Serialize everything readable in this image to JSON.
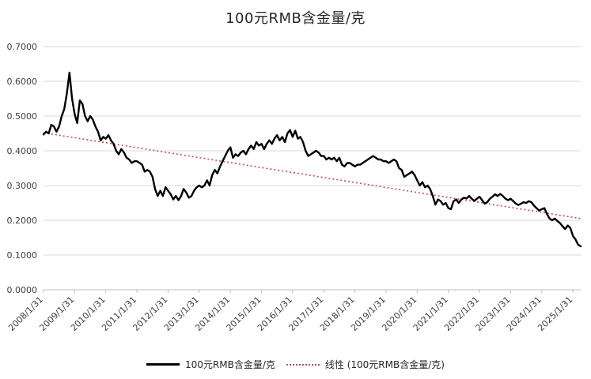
{
  "title": "100元RMB含金量/克",
  "colors": {
    "series": "#000000",
    "trend": "#c0504d",
    "grid": "#d9d9d9",
    "axis": "#bfbfbf",
    "text": "#404040",
    "title_text": "#262626",
    "background": "#ffffff"
  },
  "legend": [
    {
      "label": "100元RMB含金量/克",
      "style": "solid-black"
    },
    {
      "label": "线性 (100元RMB含金量/克)",
      "style": "dotted-red"
    }
  ],
  "chart_data": {
    "type": "line",
    "title": "100元RMB含金量/克",
    "ylim": [
      0,
      0.7
    ],
    "y_tick_step": 0.1,
    "y_tick_labels": [
      "0.0000",
      "0.1000",
      "0.2000",
      "0.3000",
      "0.4000",
      "0.5000",
      "0.6000",
      "0.7000"
    ],
    "x_tick_labels": [
      "2008/1/31",
      "2009/1/31",
      "2010/1/31",
      "2011/1/31",
      "2012/1/31",
      "2013/1/31",
      "2014/1/31",
      "2015/1/31",
      "2016/1/31",
      "2017/1/31",
      "2018/1/31",
      "2019/1/31",
      "2020/1/31",
      "2021/1/31",
      "2022/1/31",
      "2023/1/31",
      "2024/1/31",
      "2025/1/31"
    ],
    "x_ticks_every_n_points": 12,
    "grid": "horizontal-only",
    "legend_position": "bottom-center",
    "x_frequency": "monthly",
    "x_start": "2008/1/31",
    "series": [
      {
        "name": "100元RMB含金量/克",
        "values": [
          0.447,
          0.455,
          0.45,
          0.475,
          0.47,
          0.455,
          0.47,
          0.5,
          0.52,
          0.565,
          0.625,
          0.55,
          0.505,
          0.48,
          0.545,
          0.535,
          0.5,
          0.485,
          0.5,
          0.49,
          0.47,
          0.455,
          0.43,
          0.44,
          0.435,
          0.445,
          0.43,
          0.42,
          0.4,
          0.39,
          0.405,
          0.395,
          0.38,
          0.375,
          0.365,
          0.37,
          0.37,
          0.365,
          0.36,
          0.34,
          0.345,
          0.34,
          0.325,
          0.29,
          0.27,
          0.285,
          0.27,
          0.295,
          0.285,
          0.275,
          0.26,
          0.27,
          0.258,
          0.27,
          0.29,
          0.28,
          0.265,
          0.27,
          0.285,
          0.295,
          0.3,
          0.295,
          0.3,
          0.315,
          0.3,
          0.33,
          0.345,
          0.335,
          0.355,
          0.37,
          0.385,
          0.4,
          0.41,
          0.38,
          0.39,
          0.385,
          0.395,
          0.4,
          0.39,
          0.405,
          0.415,
          0.405,
          0.425,
          0.415,
          0.42,
          0.405,
          0.42,
          0.43,
          0.42,
          0.435,
          0.445,
          0.43,
          0.44,
          0.425,
          0.45,
          0.46,
          0.44,
          0.458,
          0.435,
          0.44,
          0.425,
          0.4,
          0.385,
          0.39,
          0.395,
          0.4,
          0.395,
          0.385,
          0.385,
          0.375,
          0.38,
          0.375,
          0.38,
          0.37,
          0.38,
          0.36,
          0.355,
          0.365,
          0.365,
          0.36,
          0.355,
          0.36,
          0.36,
          0.365,
          0.37,
          0.375,
          0.38,
          0.385,
          0.38,
          0.375,
          0.375,
          0.37,
          0.37,
          0.365,
          0.37,
          0.375,
          0.37,
          0.35,
          0.345,
          0.325,
          0.33,
          0.335,
          0.34,
          0.33,
          0.315,
          0.3,
          0.31,
          0.295,
          0.3,
          0.29,
          0.27,
          0.245,
          0.26,
          0.255,
          0.245,
          0.25,
          0.235,
          0.232,
          0.255,
          0.26,
          0.25,
          0.26,
          0.265,
          0.263,
          0.27,
          0.262,
          0.256,
          0.262,
          0.268,
          0.258,
          0.248,
          0.252,
          0.262,
          0.268,
          0.275,
          0.27,
          0.276,
          0.27,
          0.262,
          0.258,
          0.262,
          0.255,
          0.248,
          0.244,
          0.248,
          0.252,
          0.25,
          0.255,
          0.252,
          0.242,
          0.235,
          0.228,
          0.232,
          0.235,
          0.218,
          0.205,
          0.2,
          0.205,
          0.198,
          0.192,
          0.183,
          0.175,
          0.185,
          0.178,
          0.155,
          0.145,
          0.13,
          0.125
        ]
      }
    ],
    "trend": {
      "name": "线性 (100元RMB含金量/克)",
      "start": 0.452,
      "end": 0.205
    }
  }
}
